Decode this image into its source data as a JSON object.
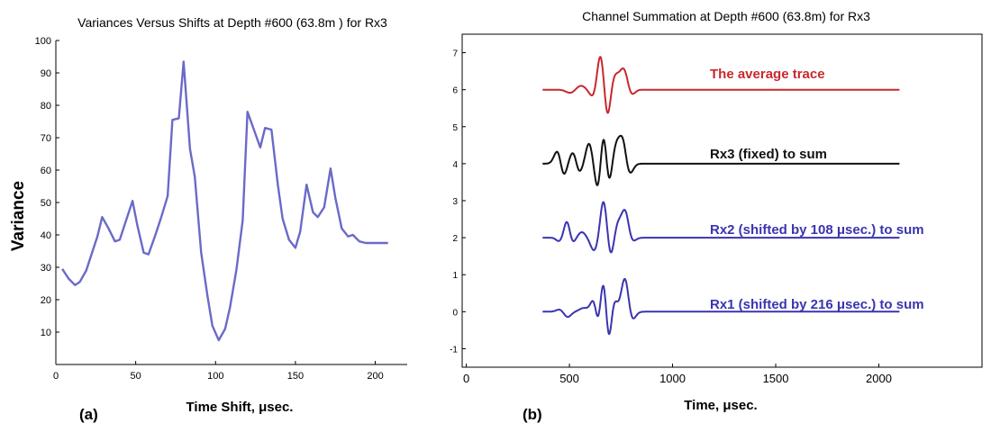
{
  "chart_data": [
    {
      "type": "line",
      "panel_label": "(a)",
      "title": "Variances  Versus Shifts at Depth #600 (63.8m ) for Rx3",
      "xlabel": "Time Shift, μsec.",
      "ylabel": "Variance",
      "xlim": [
        0,
        220
      ],
      "ylim": [
        0,
        100
      ],
      "xticks": [
        "0",
        "50",
        "100",
        "150",
        "200"
      ],
      "yticks": [
        "10",
        "20",
        "30",
        "40",
        "50",
        "60",
        "70",
        "80",
        "90",
        "100"
      ],
      "grid": false,
      "series": [
        {
          "color": "#6a6ac8",
          "x": [
            4,
            8,
            12,
            15,
            19,
            22,
            26,
            29,
            33,
            37,
            40,
            44,
            48,
            51,
            55,
            58,
            62,
            66,
            70,
            73,
            77,
            80,
            84,
            87,
            91,
            95,
            98,
            102,
            106,
            109,
            113,
            117,
            120,
            124,
            128,
            131,
            135,
            139,
            142,
            146,
            150,
            153,
            157,
            161,
            164,
            168,
            172,
            175,
            179,
            183,
            186,
            190,
            194,
            197,
            201,
            205,
            208
          ],
          "y": [
            29.5,
            26.5,
            24.5,
            25.5,
            29,
            33.5,
            39.5,
            45.5,
            42,
            38,
            38.5,
            44.5,
            50.5,
            43,
            34.5,
            34,
            39.5,
            45.5,
            52,
            75.5,
            76,
            93.5,
            66.5,
            58,
            34.5,
            21,
            12,
            7.5,
            11,
            17.5,
            29,
            44.5,
            78,
            72.5,
            67,
            73,
            72.5,
            55.5,
            45,
            38.5,
            36,
            41,
            55.5,
            47,
            45.5,
            48.5,
            60.5,
            51.5,
            42,
            39.5,
            40,
            38,
            37.5,
            37.5,
            37.5,
            37.5,
            37.5
          ]
        }
      ]
    },
    {
      "type": "line",
      "panel_label": "(b)",
      "title": "Channel Summation at Depth #600 (63.8m) for Rx3",
      "xlabel": "Time,  μsec.",
      "ylabel": "",
      "xlim": [
        -20,
        2500
      ],
      "ylim": [
        -1.5,
        7.5
      ],
      "xticks": [
        "0",
        "500",
        "1000",
        "1500",
        "2000"
      ],
      "yticks": [
        "-1",
        "0",
        "1",
        "2",
        "3",
        "4",
        "5",
        "6",
        "7"
      ],
      "grid": false,
      "series": [
        {
          "label": "The average trace",
          "color": "#c8282d",
          "baseline": 6,
          "t0": 370,
          "t1": 2100,
          "wavelet": [
            [
              505,
              30,
              -0.09
            ],
            [
              555,
              30,
              0.11
            ],
            [
              615,
              25,
              -0.2
            ],
            [
              650,
              22,
              0.95
            ],
            [
              685,
              20,
              -0.75
            ],
            [
              720,
              25,
              0.35
            ],
            [
              765,
              30,
              0.6
            ],
            [
              795,
              25,
              -0.25
            ]
          ]
        },
        {
          "label": "Rx3 (fixed) to sum",
          "color": "#111111",
          "baseline": 4,
          "t0": 370,
          "t1": 2100,
          "wavelet": [
            [
              445,
              25,
              0.4
            ],
            [
              470,
              22,
              -0.4
            ],
            [
              520,
              25,
              0.35
            ],
            [
              545,
              22,
              -0.3
            ],
            [
              595,
              22,
              0.55
            ],
            [
              640,
              22,
              -0.8
            ],
            [
              665,
              22,
              1.0
            ],
            [
              690,
              20,
              -0.65
            ],
            [
              730,
              25,
              0.55
            ],
            [
              760,
              22,
              0.6
            ],
            [
              790,
              25,
              -0.3
            ]
          ]
        },
        {
          "label": "Rx2 (shifted by 108 μsec.) to sum",
          "color": "#3a34b0",
          "baseline": 2,
          "t0": 370,
          "t1": 2100,
          "wavelet": [
            [
              450,
              20,
              -0.1
            ],
            [
              488,
              20,
              0.45
            ],
            [
              515,
              20,
              -0.15
            ],
            [
              560,
              25,
              0.15
            ],
            [
              620,
              25,
              -0.35
            ],
            [
              665,
              22,
              1.0
            ],
            [
              700,
              20,
              -0.5
            ],
            [
              735,
              22,
              0.35
            ],
            [
              770,
              25,
              0.75
            ],
            [
              800,
              25,
              -0.15
            ]
          ]
        },
        {
          "label": "Rx1 (shifted by 216 μsec.) to sum",
          "color": "#3a34b0",
          "baseline": 0,
          "t0": 370,
          "t1": 2100,
          "wavelet": [
            [
              455,
              25,
              0.07
            ],
            [
              490,
              25,
              -0.15
            ],
            [
              570,
              30,
              0.1
            ],
            [
              620,
              22,
              0.4
            ],
            [
              640,
              20,
              -0.55
            ],
            [
              665,
              22,
              1.0
            ],
            [
              690,
              20,
              -0.95
            ],
            [
              715,
              22,
              0.35
            ],
            [
              770,
              25,
              0.95
            ],
            [
              800,
              25,
              -0.3
            ]
          ]
        }
      ]
    }
  ]
}
